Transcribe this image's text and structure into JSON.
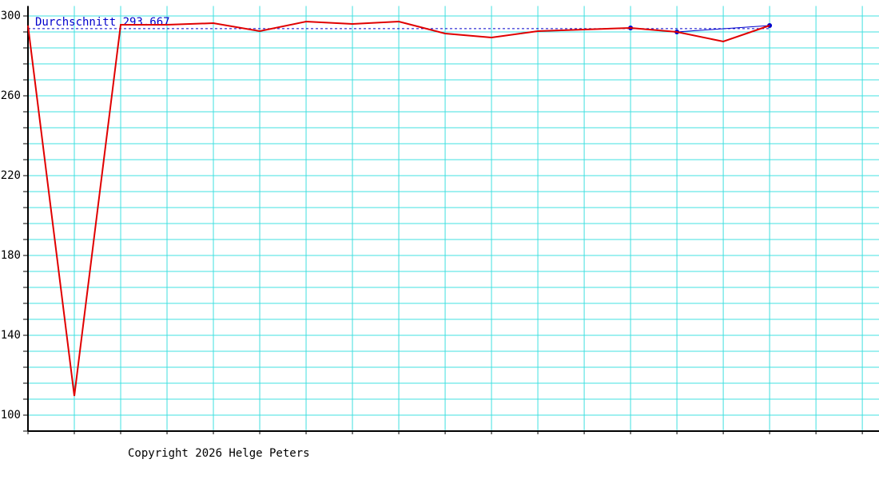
{
  "chart_data": {
    "type": "line",
    "x": [
      0,
      1,
      2,
      3,
      4,
      5,
      6,
      7,
      8,
      9,
      10,
      11,
      12,
      13,
      14,
      15,
      16
    ],
    "xlim": [
      0,
      18.36
    ],
    "xticks": [
      0,
      1,
      2,
      3,
      4,
      5,
      6,
      7,
      8,
      9,
      10,
      11,
      12,
      13,
      14,
      15,
      16,
      17,
      18
    ],
    "ylim": [
      92,
      305
    ],
    "yticks": [
      100,
      140,
      180,
      220,
      260,
      300
    ],
    "minor_yticks": [
      92,
      100,
      108,
      116,
      124,
      132,
      140,
      148,
      156,
      164,
      172,
      180,
      188,
      196,
      204,
      212,
      220,
      228,
      236,
      244,
      252,
      260,
      268,
      276,
      284,
      292,
      300
    ],
    "grid": true,
    "grid_color": "#40e0e0",
    "series": [
      {
        "color": "#e00000",
        "x": [
          0,
          1,
          2,
          3,
          4,
          5,
          6,
          7,
          8,
          9,
          10,
          11,
          12,
          13,
          14,
          15,
          16
        ],
        "values": [
          295.2,
          109.6,
          295.6,
          295.6,
          296.4,
          292.4,
          297.2,
          296,
          297.2,
          291.2,
          289.2,
          292.4,
          293.2,
          294,
          292,
          287.2,
          295.2
        ]
      },
      {
        "color": "#0000cc",
        "x": [
          13,
          14,
          16
        ],
        "values": [
          294,
          292,
          295.2
        ],
        "markers": true
      }
    ],
    "average": 293.667,
    "average_label": "Durchschnitt 293.667",
    "average_color": "#0000cc",
    "footer": "Copyright 2026 Helge Peters"
  }
}
